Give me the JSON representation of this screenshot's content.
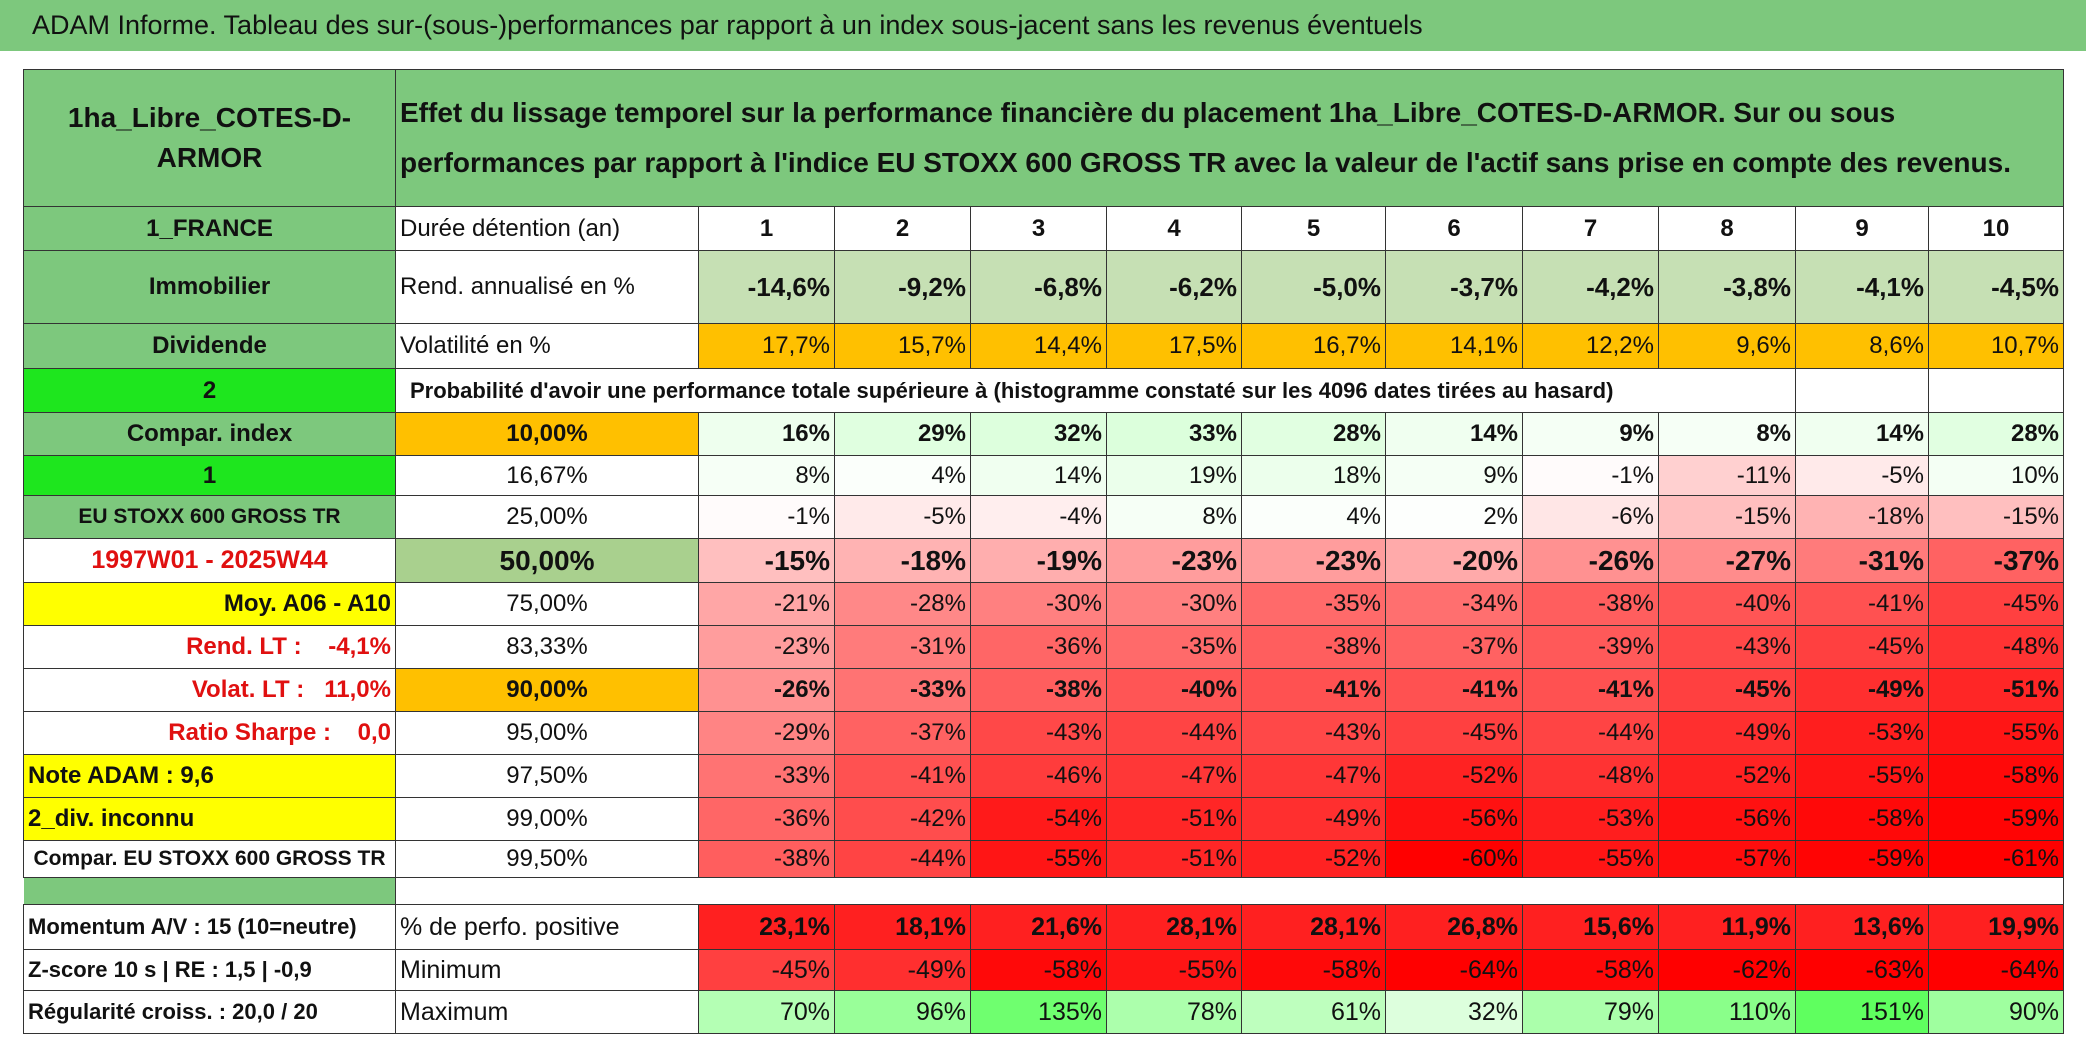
{
  "header": {
    "title": "ADAM Informe. Tableau des sur-(sous-)performances par rapport à un index sous-jacent sans les revenus éventuels"
  },
  "table": {
    "fund": "1ha_Libre_COTES-D-ARMOR",
    "description": "Effet du lissage temporel sur la performance financière du placement 1ha_Libre_COTES-D-ARMOR. Sur ou sous performances par rapport à l'indice EU STOXX 600 GROSS TR avec la valeur de l'actif sans prise en compte des revenus.",
    "rows": [
      [
        "1_FRANCE",
        "Durée détention (an)",
        1,
        2,
        3,
        4,
        5,
        6,
        7,
        8,
        9,
        10
      ],
      [
        "Immobilier",
        "Rend. annualisé en %",
        "-14,6%",
        "-9,2%",
        "-6,8%",
        "-6,2%",
        "-5,0%",
        "-3,7%",
        "-4,2%",
        "-3,8%",
        "-4,1%",
        "-4,5%"
      ],
      [
        "Dividende",
        "Volatilité en %",
        "17,7%",
        "15,7%",
        "14,4%",
        "17,5%",
        "16,7%",
        "14,1%",
        "12,2%",
        "9,6%",
        "8,6%",
        "10,7%"
      ],
      [
        "2",
        "Probabilité d'avoir une performance totale supérieure à (histogramme constaté sur les 4096 dates tirées au hasard)"
      ],
      [
        "Compar. index",
        "10,00%",
        "16%",
        "29%",
        "32%",
        "33%",
        "28%",
        "14%",
        "9%",
        "8%",
        "14%",
        "28%"
      ],
      [
        "1",
        "16,67%",
        "8%",
        "4%",
        "14%",
        "19%",
        "18%",
        "9%",
        "-1%",
        "-11%",
        "-5%",
        "10%"
      ],
      [
        "EU STOXX 600 GROSS TR",
        "25,00%",
        "-1%",
        "-5%",
        "-4%",
        "8%",
        "4%",
        "2%",
        "-6%",
        "-15%",
        "-18%",
        "-15%"
      ],
      [
        "1997W01 - 2025W44",
        "50,00%",
        "-15%",
        "-18%",
        "-19%",
        "-23%",
        "-23%",
        "-20%",
        "-26%",
        "-27%",
        "-31%",
        "-37%"
      ],
      [
        "Moy. A06 - A10",
        "75,00%",
        "-21%",
        "-28%",
        "-30%",
        "-30%",
        "-35%",
        "-34%",
        "-38%",
        "-40%",
        "-41%",
        "-45%"
      ],
      [
        "Rend. LT :    -4,1%",
        "83,33%",
        "-23%",
        "-31%",
        "-36%",
        "-35%",
        "-38%",
        "-37%",
        "-39%",
        "-43%",
        "-45%",
        "-48%"
      ],
      [
        "Volat. LT :   11,0%",
        "90,00%",
        "-26%",
        "-33%",
        "-38%",
        "-40%",
        "-41%",
        "-41%",
        "-41%",
        "-45%",
        "-49%",
        "-51%"
      ],
      [
        "Ratio Sharpe :    0,0",
        "95,00%",
        "-29%",
        "-37%",
        "-43%",
        "-44%",
        "-43%",
        "-45%",
        "-44%",
        "-49%",
        "-53%",
        "-55%"
      ],
      [
        "Note ADAM : 9,6",
        "97,50%",
        "-33%",
        "-41%",
        "-46%",
        "-47%",
        "-47%",
        "-52%",
        "-48%",
        "-52%",
        "-55%",
        "-58%"
      ],
      [
        "2_div. inconnu",
        "99,00%",
        "-36%",
        "-42%",
        "-54%",
        "-51%",
        "-49%",
        "-56%",
        "-53%",
        "-56%",
        "-58%",
        "-59%"
      ],
      [
        "Compar. EU STOXX 600 GROSS TR",
        "99,50%",
        "-38%",
        "-44%",
        "-55%",
        "-51%",
        "-52%",
        "-60%",
        "-55%",
        "-57%",
        "-59%",
        "-61%"
      ]
    ],
    "footer_rows": [
      [
        "Momentum A/V : 15 (10=neutre)",
        "% de perfo. positive",
        "23,1%",
        "18,1%",
        "21,6%",
        "28,1%",
        "28,1%",
        "26,8%",
        "15,6%",
        "11,9%",
        "13,6%",
        "19,9%"
      ],
      [
        "Z-score 10 s | RE : 1,5 | -0,9",
        "Minimum",
        "-45%",
        "-49%",
        "-58%",
        "-55%",
        "-58%",
        "-64%",
        "-58%",
        "-62%",
        "-63%",
        "-64%"
      ],
      [
        "Régularité croiss. : 20,0 / 20",
        "Maximum",
        "70%",
        "96%",
        "135%",
        "78%",
        "61%",
        "32%",
        "79%",
        "110%",
        "151%",
        "90%"
      ]
    ]
  }
}
